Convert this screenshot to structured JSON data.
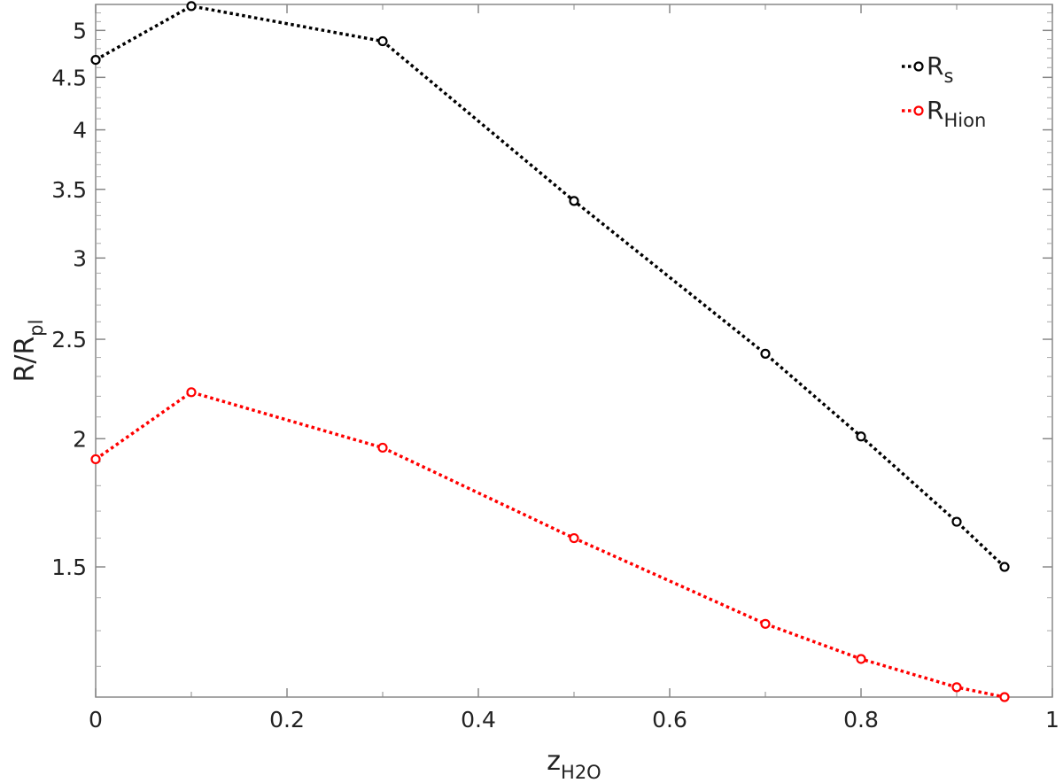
{
  "chart_data": {
    "type": "line",
    "x": [
      0,
      0.1,
      0.3,
      0.5,
      0.7,
      0.8,
      0.9,
      0.95
    ],
    "series": [
      {
        "name_main": "R",
        "name_sub": "s",
        "color": "#000000",
        "values": [
          4.68,
          5.28,
          4.88,
          3.41,
          2.42,
          2.01,
          1.66,
          1.5
        ]
      },
      {
        "name_main": "R",
        "name_sub": "Hion",
        "color": "#ff0000",
        "values": [
          1.91,
          2.22,
          1.96,
          1.6,
          1.32,
          1.22,
          1.145,
          1.12
        ]
      }
    ],
    "xlabel_main": "z",
    "xlabel_sub": "H2O",
    "ylabel_main": "R/R",
    "ylabel_sub": "pl",
    "xlim": [
      0,
      1
    ],
    "ylim": [
      1.12,
      5.3
    ],
    "yscale": "log",
    "xticks": [
      0,
      0.2,
      0.4,
      0.6,
      0.8,
      1
    ],
    "xtick_labels": [
      "0",
      "0.2",
      "0.4",
      "0.6",
      "0.8",
      "1"
    ],
    "yticks": [
      1.5,
      2,
      2.5,
      3,
      3.5,
      4,
      4.5,
      5
    ],
    "ytick_labels": [
      "1.5",
      "2",
      "2.5",
      "3",
      "3.5",
      "4",
      "4.5",
      "5"
    ],
    "legend_position": "top-right",
    "grid": false
  }
}
